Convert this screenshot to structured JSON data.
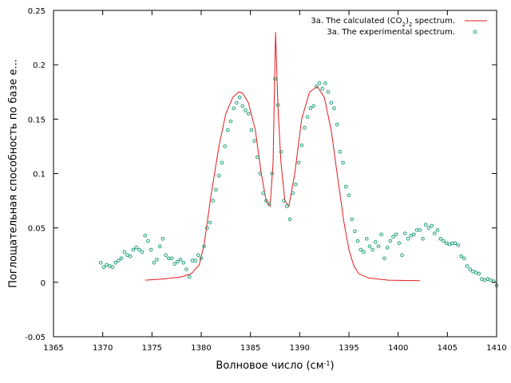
{
  "chart_data": {
    "type": "line",
    "xlabel": "Волновое число (см",
    "xlabel_sup": "-1",
    "xlabel_end": ")",
    "ylabel": "Поглощательная способность по базе е...",
    "xlim": [
      1365,
      1410
    ],
    "ylim": [
      -0.05,
      0.25
    ],
    "x_ticks": [
      1365,
      1370,
      1375,
      1380,
      1385,
      1390,
      1395,
      1400,
      1405,
      1410
    ],
    "y_ticks": [
      -0.05,
      0,
      0.05,
      0.1,
      0.15,
      0.2,
      0.25
    ],
    "x_tick_labels": [
      "1365",
      "1370",
      "1375",
      "1380",
      "1385",
      "1390",
      "1395",
      "1400",
      "1405",
      "1410"
    ],
    "y_tick_labels": [
      "-0.05",
      "0",
      "0.05",
      "0.1",
      "0.15",
      "0.2",
      "0.25"
    ],
    "grid": false,
    "legend_position": "top-right",
    "legend": {
      "calc_prefix": "3a. The calculated (CO",
      "calc_sub1": "2",
      "calc_mid": ")",
      "calc_sub2": "2",
      "calc_suffix": " spectrum.",
      "exp_label": "3a. The experimental spectrum."
    },
    "series": [
      {
        "style": "line",
        "color": "#e41a1c",
        "x": [
          1374.3,
          1376,
          1378,
          1379,
          1379.8,
          1380.3,
          1381,
          1381.8,
          1382.5,
          1383.2,
          1383.8,
          1384.2,
          1384.8,
          1385.5,
          1386.1,
          1386.6,
          1387,
          1387.3,
          1387.55,
          1387.8,
          1388.1,
          1388.5,
          1388.9,
          1389.5,
          1390.2,
          1391,
          1391.8,
          1392.5,
          1393.2,
          1393.8,
          1394.5,
          1395,
          1395.5,
          1396,
          1397,
          1399,
          1402.2
        ],
        "y": [
          0.002,
          0.003,
          0.005,
          0.008,
          0.016,
          0.035,
          0.08,
          0.125,
          0.155,
          0.17,
          0.175,
          0.174,
          0.165,
          0.14,
          0.1,
          0.075,
          0.07,
          0.11,
          0.23,
          0.16,
          0.11,
          0.075,
          0.07,
          0.1,
          0.15,
          0.175,
          0.18,
          0.17,
          0.14,
          0.1,
          0.055,
          0.03,
          0.015,
          0.008,
          0.004,
          0.002,
          0.0015
        ]
      },
      {
        "style": "points",
        "color": "#1b9e77",
        "x": [
          1369.8,
          1370.1,
          1370.4,
          1370.7,
          1371.0,
          1371.3,
          1371.6,
          1371.9,
          1372.2,
          1372.5,
          1372.8,
          1373.1,
          1373.4,
          1373.7,
          1374.0,
          1374.3,
          1374.6,
          1374.9,
          1375.2,
          1375.5,
          1375.8,
          1376.1,
          1376.4,
          1376.7,
          1377.0,
          1377.3,
          1377.6,
          1377.9,
          1378.2,
          1378.5,
          1378.8,
          1379.1,
          1379.4,
          1379.7,
          1380.0,
          1380.3,
          1380.6,
          1380.9,
          1381.2,
          1381.5,
          1381.8,
          1382.1,
          1382.4,
          1382.7,
          1383.0,
          1383.3,
          1383.6,
          1383.9,
          1384.2,
          1384.5,
          1384.8,
          1385.1,
          1385.4,
          1385.7,
          1386.0,
          1386.3,
          1386.6,
          1386.9,
          1387.2,
          1387.5,
          1387.8,
          1388.1,
          1388.4,
          1388.7,
          1389.0,
          1389.3,
          1389.6,
          1389.9,
          1390.2,
          1390.5,
          1390.8,
          1391.1,
          1391.4,
          1391.7,
          1392.0,
          1392.3,
          1392.6,
          1392.9,
          1393.2,
          1393.5,
          1393.8,
          1394.1,
          1394.4,
          1394.7,
          1395.0,
          1395.3,
          1395.6,
          1395.9,
          1396.2,
          1396.5,
          1396.8,
          1397.1,
          1397.4,
          1397.7,
          1398.0,
          1398.3,
          1398.6,
          1398.9,
          1399.2,
          1399.5,
          1399.8,
          1400.1,
          1400.4,
          1400.7,
          1401.0,
          1401.3,
          1401.6,
          1401.9,
          1402.2,
          1402.5,
          1402.8,
          1403.1,
          1403.4,
          1403.7,
          1404.0,
          1404.3,
          1404.6,
          1404.9,
          1405.2,
          1405.5,
          1405.8,
          1406.1,
          1406.4,
          1406.7,
          1407.0,
          1407.3,
          1407.6,
          1407.9,
          1408.2,
          1408.5,
          1408.8,
          1409.1,
          1409.4,
          1409.7,
          1410.0
        ],
        "y": [
          0.018,
          0.014,
          0.016,
          0.015,
          0.014,
          0.018,
          0.02,
          0.022,
          0.028,
          0.025,
          0.024,
          0.03,
          0.032,
          0.03,
          0.028,
          0.043,
          0.038,
          0.03,
          0.018,
          0.021,
          0.033,
          0.04,
          0.025,
          0.022,
          0.022,
          0.017,
          0.019,
          0.021,
          0.018,
          0.012,
          0.005,
          0.02,
          0.02,
          0.025,
          0.022,
          0.033,
          0.05,
          0.055,
          0.075,
          0.085,
          0.098,
          0.11,
          0.125,
          0.14,
          0.148,
          0.16,
          0.165,
          0.17,
          0.162,
          0.158,
          0.155,
          0.14,
          0.13,
          0.115,
          0.1,
          0.082,
          0.075,
          0.072,
          0.1,
          0.187,
          0.163,
          0.12,
          0.075,
          0.07,
          0.058,
          0.082,
          0.09,
          0.11,
          0.126,
          0.142,
          0.152,
          0.16,
          0.162,
          0.18,
          0.183,
          0.178,
          0.183,
          0.175,
          0.165,
          0.16,
          0.145,
          0.12,
          0.11,
          0.088,
          0.08,
          0.058,
          0.047,
          0.038,
          0.03,
          0.028,
          0.04,
          0.033,
          0.03,
          0.037,
          0.033,
          0.044,
          0.022,
          0.032,
          0.038,
          0.042,
          0.044,
          0.036,
          0.025,
          0.045,
          0.04,
          0.043,
          0.044,
          0.048,
          0.048,
          0.04,
          0.053,
          0.05,
          0.052,
          0.045,
          0.048,
          0.04,
          0.038,
          0.036,
          0.035,
          0.036,
          0.036,
          0.034,
          0.024,
          0.022,
          0.015,
          0.012,
          0.01,
          0.009,
          0.008,
          0.003,
          0.002,
          0.003,
          0.002,
          0.001,
          -0.003
        ]
      }
    ]
  }
}
